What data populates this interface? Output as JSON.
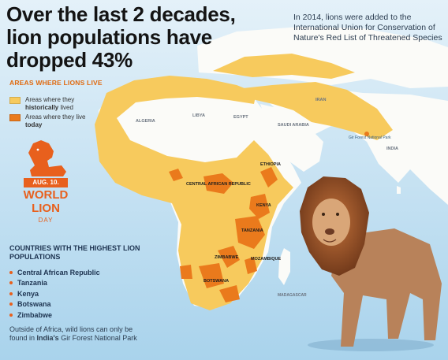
{
  "headline": "Over the last 2 decades, lion populations have dropped 43%",
  "note": "In 2014, lions were added to the International Union for Conservation of Nature's Red List of Threatened Species",
  "legend": {
    "title": "AREAS WHERE LIONS LIVE",
    "historical": {
      "prefix": "Areas where they",
      "emphasis": "historically",
      "suffix": " lived",
      "color": "#f7ca5d"
    },
    "today": {
      "prefix": "Areas where they live",
      "emphasis": "today",
      "color": "#ea7a1c"
    }
  },
  "badge": {
    "date": "AUG. 10.",
    "title_line1": "WORLD",
    "title_line2": "LION",
    "subtitle": "DAY",
    "color": "#e8601d",
    "icon": "lion-icon"
  },
  "countries_title": "COUNTRIES WITH THE HIGHEST LION POPULATIONS",
  "countries": [
    "Central African Republic",
    "Tanzania",
    "Kenya",
    "Botswana",
    "Zimbabwe"
  ],
  "footnote": {
    "before": "Outside of Africa, wild lions can only be found in ",
    "emphasis": "India's",
    "after": " Gir Forest National Park"
  },
  "map_labels": {
    "central_african_republic": "CENTRAL AFRICAN REPUBLIC",
    "ethiopia": "ETHIOPIA",
    "kenya": "KENYA",
    "tanzania": "TANZANIA",
    "zimbabwe": "ZIMBABWE",
    "mozambique": "MOZAMBIQUE",
    "botswana": "BOTSWANA",
    "india": "INDIA",
    "gir_forest": "Gir Forest National Park",
    "iran": "IRAN",
    "saudi_arabia": "SAUDI ARABIA",
    "libya": "LIBYA",
    "algeria": "ALGERIA",
    "egypt": "EGYPT",
    "madagascar": "MADAGASCAR"
  },
  "colors": {
    "ocean": "#c6e2f3",
    "land": "#fbfbf8",
    "historical": "#f7ca5d",
    "today": "#ea7a1c"
  }
}
